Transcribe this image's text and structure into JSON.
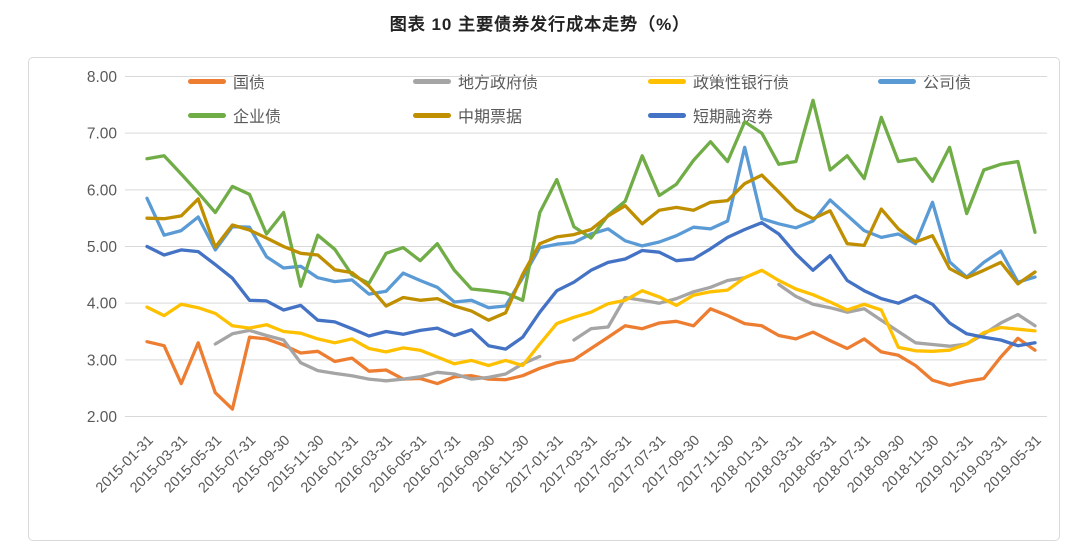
{
  "title": "图表 10 主要债券发行成本走势（%）",
  "legend": {
    "items": [
      {
        "label": "国债",
        "color": "#ED7D31",
        "key": "treasury-bonds"
      },
      {
        "label": "地方政府债",
        "color": "#A5A5A5",
        "key": "local-govt-bonds"
      },
      {
        "label": "政策性银行债",
        "color": "#FFC000",
        "key": "policy-bank-bonds"
      },
      {
        "label": "公司债",
        "color": "#5B9BD5",
        "key": "corporate-bonds"
      },
      {
        "label": "企业债",
        "color": "#70AD47",
        "key": "enterprise-bonds"
      },
      {
        "label": "中期票据",
        "color": "#BF8F00",
        "key": "medium-term-notes"
      },
      {
        "label": "短期融资券",
        "color": "#4472C4",
        "key": "short-term-bills"
      }
    ]
  },
  "chart_data": {
    "type": "line",
    "title": "图表 10 主要债券发行成本走势（%）",
    "ylim": [
      2.0,
      8.0
    ],
    "y_ticks": [
      "8.00",
      "7.00",
      "6.00",
      "5.00",
      "4.00",
      "3.00",
      "2.00"
    ],
    "grid": "horizontal",
    "legend_position": "top",
    "x": [
      "2015-01",
      "2015-02",
      "2015-03",
      "2015-04",
      "2015-05",
      "2015-06",
      "2015-07",
      "2015-08",
      "2015-09",
      "2015-10",
      "2015-11",
      "2015-12",
      "2016-01",
      "2016-02",
      "2016-03",
      "2016-04",
      "2016-05",
      "2016-06",
      "2016-07",
      "2016-08",
      "2016-09",
      "2016-10",
      "2016-11",
      "2016-12",
      "2017-01",
      "2017-02",
      "2017-03",
      "2017-04",
      "2017-05",
      "2017-06",
      "2017-07",
      "2017-08",
      "2017-09",
      "2017-10",
      "2017-11",
      "2017-12",
      "2018-01",
      "2018-02",
      "2018-03",
      "2018-04",
      "2018-05",
      "2018-06",
      "2018-07",
      "2018-08",
      "2018-09",
      "2018-10",
      "2018-11",
      "2018-12",
      "2019-01",
      "2019-02",
      "2019-03",
      "2019-04",
      "2019-05"
    ],
    "xtick_labels": [
      "2015-01-31",
      "2015-03-31",
      "2015-05-31",
      "2015-07-31",
      "2015-09-30",
      "2015-11-30",
      "2016-01-31",
      "2016-03-31",
      "2016-05-31",
      "2016-07-31",
      "2016-09-30",
      "2016-11-30",
      "2017-01-31",
      "2017-03-31",
      "2017-05-31",
      "2017-07-31",
      "2017-09-30",
      "2017-11-30",
      "2018-01-31",
      "2018-03-31",
      "2018-05-31",
      "2018-07-31",
      "2018-09-30",
      "2018-11-30",
      "2019-01-31",
      "2019-03-31",
      "2019-05-31"
    ],
    "series": [
      {
        "name": "国债",
        "key": "treasury-bonds",
        "color": "#ED7D31",
        "values": [
          3.32,
          3.25,
          2.58,
          3.3,
          2.42,
          2.13,
          3.4,
          3.37,
          3.26,
          3.12,
          3.15,
          2.97,
          3.03,
          2.8,
          2.82,
          2.66,
          2.67,
          2.58,
          2.7,
          2.72,
          2.66,
          2.65,
          2.72,
          2.85,
          2.95,
          3.0,
          3.2,
          3.4,
          3.6,
          3.55,
          3.65,
          3.68,
          3.6,
          3.9,
          3.78,
          3.64,
          3.6,
          3.43,
          3.37,
          3.49,
          3.34,
          3.2,
          3.37,
          3.14,
          3.08,
          2.9,
          2.64,
          2.55,
          2.62,
          2.67,
          3.05,
          3.38,
          3.17
        ]
      },
      {
        "name": "地方政府债",
        "key": "local-govt-bonds",
        "color": "#A5A5A5",
        "values": [
          null,
          null,
          null,
          null,
          3.28,
          3.46,
          3.52,
          3.43,
          3.35,
          2.95,
          2.81,
          2.76,
          2.72,
          2.66,
          2.63,
          2.66,
          2.7,
          2.78,
          2.75,
          2.66,
          2.69,
          2.75,
          2.93,
          3.06,
          null,
          3.35,
          3.55,
          3.58,
          4.1,
          4.05,
          4.0,
          4.08,
          4.2,
          4.28,
          4.4,
          4.45,
          null,
          4.33,
          4.12,
          3.98,
          3.92,
          3.84,
          3.9,
          3.7,
          3.5,
          3.3,
          3.27,
          3.24,
          3.28,
          3.45,
          3.65,
          3.8,
          3.6
        ]
      },
      {
        "name": "政策性银行债",
        "key": "policy-bank-bonds",
        "color": "#FFC000",
        "values": [
          3.93,
          3.78,
          3.98,
          3.92,
          3.82,
          3.6,
          3.56,
          3.62,
          3.5,
          3.47,
          3.37,
          3.3,
          3.37,
          3.2,
          3.14,
          3.21,
          3.17,
          3.05,
          2.93,
          2.99,
          2.9,
          2.99,
          2.9,
          3.28,
          3.64,
          3.75,
          3.84,
          3.99,
          4.05,
          4.22,
          4.11,
          3.96,
          4.14,
          4.2,
          4.23,
          4.45,
          4.58,
          4.4,
          4.25,
          4.15,
          4.02,
          3.88,
          3.98,
          3.88,
          3.22,
          3.16,
          3.15,
          3.17,
          3.28,
          3.48,
          3.57,
          3.54,
          3.51
        ]
      },
      {
        "name": "公司债",
        "key": "corporate-bonds",
        "color": "#5B9BD5",
        "values": [
          5.85,
          5.2,
          5.28,
          5.52,
          4.94,
          5.35,
          5.34,
          4.82,
          4.62,
          4.65,
          4.45,
          4.38,
          4.41,
          4.16,
          4.21,
          4.53,
          4.4,
          4.28,
          4.02,
          4.05,
          3.92,
          3.95,
          4.45,
          4.98,
          5.04,
          5.07,
          5.22,
          5.31,
          5.1,
          5.01,
          5.08,
          5.19,
          5.34,
          5.31,
          5.45,
          6.75,
          5.49,
          5.4,
          5.33,
          5.45,
          5.82,
          5.55,
          5.28,
          5.16,
          5.22,
          5.05,
          5.78,
          4.73,
          4.46,
          4.72,
          4.92,
          4.37,
          4.46
        ]
      },
      {
        "name": "企业债",
        "key": "enterprise-bonds",
        "color": "#70AD47",
        "values": [
          6.55,
          6.6,
          6.28,
          5.95,
          5.6,
          6.06,
          5.92,
          5.22,
          5.6,
          4.3,
          5.2,
          4.95,
          4.5,
          4.35,
          4.88,
          4.98,
          4.75,
          5.05,
          4.58,
          4.25,
          4.22,
          4.18,
          4.05,
          5.6,
          6.18,
          5.35,
          5.15,
          5.55,
          5.8,
          6.6,
          5.9,
          6.1,
          6.52,
          6.85,
          6.5,
          7.2,
          7.0,
          6.45,
          6.5,
          7.58,
          6.35,
          6.6,
          6.2,
          7.28,
          6.5,
          6.55,
          6.15,
          6.75,
          5.58,
          6.35,
          6.45,
          6.5,
          5.25
        ]
      },
      {
        "name": "中期票据",
        "key": "medium-term-notes",
        "color": "#BF8F00",
        "values": [
          5.5,
          5.49,
          5.54,
          5.84,
          4.99,
          5.38,
          5.29,
          5.15,
          5.0,
          4.88,
          4.85,
          4.59,
          4.54,
          4.3,
          3.95,
          4.1,
          4.05,
          4.08,
          3.95,
          3.86,
          3.7,
          3.83,
          4.51,
          5.05,
          5.17,
          5.21,
          5.3,
          5.54,
          5.72,
          5.4,
          5.64,
          5.69,
          5.64,
          5.78,
          5.81,
          6.11,
          6.26,
          5.96,
          5.65,
          5.49,
          5.63,
          5.05,
          5.02,
          5.66,
          5.31,
          5.08,
          5.19,
          4.61,
          4.45,
          4.58,
          4.72,
          4.34,
          4.55
        ]
      },
      {
        "name": "短期融资券",
        "key": "short-term-bills",
        "color": "#4472C4",
        "values": [
          5.0,
          4.85,
          4.94,
          4.91,
          4.68,
          4.44,
          4.05,
          4.04,
          3.88,
          3.96,
          3.7,
          3.67,
          3.55,
          3.42,
          3.5,
          3.45,
          3.52,
          3.56,
          3.43,
          3.53,
          3.25,
          3.19,
          3.4,
          3.84,
          4.22,
          4.37,
          4.58,
          4.72,
          4.78,
          4.93,
          4.9,
          4.75,
          4.78,
          4.96,
          5.16,
          5.3,
          5.42,
          5.22,
          4.87,
          4.58,
          4.84,
          4.4,
          4.22,
          4.08,
          4.0,
          4.13,
          3.98,
          3.65,
          3.46,
          3.4,
          3.35,
          3.25,
          3.3
        ]
      }
    ]
  }
}
